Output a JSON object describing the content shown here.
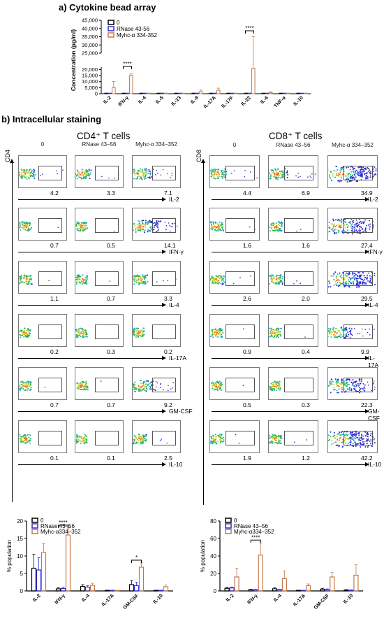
{
  "section_a": {
    "title": "a) Cytokine bead array"
  },
  "section_b": {
    "title": "b) Intracellular staining"
  },
  "cd4": {
    "title": "CD4⁺ T cells",
    "axis": "CD4"
  },
  "cd8": {
    "title": "CD8⁺ T cells",
    "axis": "CD8"
  },
  "conditions": [
    "0",
    "RNase 43–56",
    "Myhc-α 334–352"
  ],
  "cd4_cytokine_labels": [
    "IL-2",
    "IFN-γ",
    "IL-4",
    "IL-17A",
    "GM-CSF",
    "IL-10"
  ],
  "cd8_cytokine_labels": [
    "IL-2",
    "IFN-γ",
    "IL-4",
    "IL-17A",
    "GM-CSF",
    "IL-10"
  ],
  "cd4_percentages": [
    [
      "4.2",
      "3.3",
      "7.1"
    ],
    [
      "0.7",
      "0.5",
      "14.1"
    ],
    [
      "1.1",
      "0.7",
      "3.3"
    ],
    [
      "0.2",
      "0.3",
      "0.2"
    ],
    [
      "0.7",
      "0.7",
      "9.2"
    ],
    [
      "0.1",
      "0.1",
      "2.5"
    ]
  ],
  "cd8_percentages": [
    [
      "4.4",
      "6.9",
      "34.9"
    ],
    [
      "1.6",
      "1.6",
      "27.4"
    ],
    [
      "2.6",
      "2.0",
      "29.5"
    ],
    [
      "0.9",
      "0.4",
      "9.9"
    ],
    [
      "0.5",
      "0.3",
      "22.3"
    ],
    [
      "1.9",
      "1.2",
      "42.2"
    ]
  ],
  "colors": {
    "s0": "#000000",
    "s1": "#2b2bd6",
    "s2": "#c0794e",
    "sig": "#000000"
  },
  "chart_data": [
    {
      "type": "bar",
      "title": "a) Cytokine bead array",
      "ylabel": "Concentration (pg/ml)",
      "categories": [
        "IL-2",
        "IFN-γ",
        "IL-4",
        "IL-5",
        "IL-13",
        "IL-9",
        "IL-17A",
        "IL-17F",
        "IL-22",
        "IL-6",
        "TNF-α",
        "IL-10"
      ],
      "series": [
        {
          "name": "0",
          "values": [
            0,
            0,
            0,
            0,
            0,
            0,
            0,
            0,
            0,
            0,
            0,
            0
          ],
          "err": [
            0,
            0,
            0,
            0,
            0,
            0,
            0,
            0,
            0,
            0,
            0,
            0
          ]
        },
        {
          "name": "RNase 43-56",
          "values": [
            0,
            0,
            0,
            0,
            0,
            0,
            0,
            0,
            0,
            0,
            0,
            0
          ],
          "err": [
            0,
            0,
            0,
            0,
            0,
            0,
            0,
            0,
            0,
            0,
            0,
            0
          ]
        },
        {
          "name": "Myhc-α 334-352",
          "values": [
            5200,
            15200,
            0,
            0,
            0,
            1700,
            2800,
            0,
            21000,
            800,
            0,
            0
          ],
          "err": [
            5000,
            1200,
            0,
            0,
            0,
            1300,
            1800,
            0,
            14000,
            600,
            0,
            0
          ]
        }
      ],
      "y_ticks": [
        "0",
        "5,000",
        "10,000",
        "15,000",
        "20,000",
        "25,000",
        "30,000",
        "35,000",
        "40,000",
        "45,000"
      ],
      "ylim": [
        0,
        45000
      ],
      "axis_break": [
        22000,
        25000
      ],
      "significance": [
        {
          "category": "IFN-γ",
          "label": "****"
        },
        {
          "category": "IL-22",
          "label": "****"
        }
      ],
      "legend": "top-left"
    },
    {
      "type": "bar",
      "ylabel": "% population",
      "categories": [
        "IL-2",
        "IFN-γ",
        "IL-4",
        "IL-17A",
        "GM-CSF",
        "IL-10"
      ],
      "series": [
        {
          "name": "0",
          "values": [
            6.5,
            0.6,
            1.3,
            0.1,
            1.8,
            0.1
          ],
          "err": [
            4,
            0.3,
            0.5,
            0.1,
            1.2,
            0.1
          ]
        },
        {
          "name": "RNase 43–56",
          "values": [
            6,
            0.7,
            1.1,
            0.1,
            1.5,
            0.1
          ],
          "err": [
            3.5,
            0.3,
            0.4,
            0.1,
            1,
            0.1
          ]
        },
        {
          "name": "Myhc-α334–352",
          "values": [
            11,
            16,
            1.6,
            0.1,
            6.8,
            1.2
          ],
          "err": [
            2.5,
            2,
            0.6,
            0.1,
            1.2,
            0.5
          ]
        }
      ],
      "y_ticks": [
        "0",
        "5",
        "10",
        "15",
        "20"
      ],
      "ylim": [
        0,
        20
      ],
      "significance": [
        {
          "category": "IFN-γ",
          "label": "****"
        },
        {
          "category": "GM-CSF",
          "label": "*"
        }
      ],
      "legend": "top-left"
    },
    {
      "type": "bar",
      "ylabel": "% population",
      "categories": [
        "IL-2",
        "IFN-γ",
        "IL-4",
        "IL-17A",
        "GM-CSF",
        "IL-10"
      ],
      "series": [
        {
          "name": "0",
          "values": [
            3,
            1.5,
            2.5,
            0.5,
            2,
            1
          ],
          "err": [
            1,
            0.5,
            1,
            0.3,
            1,
            0.5
          ]
        },
        {
          "name": "RNase 43–56",
          "values": [
            3.5,
            1.2,
            1.5,
            0.3,
            1.5,
            0.8
          ],
          "err": [
            1,
            0.5,
            0.5,
            0.2,
            0.8,
            0.4
          ]
        },
        {
          "name": "Myhc-α334–352",
          "values": [
            16,
            41,
            14,
            6,
            16,
            18
          ],
          "err": [
            10,
            14,
            9,
            2,
            5,
            12
          ]
        }
      ],
      "y_ticks": [
        "0",
        "20",
        "40",
        "60",
        "80"
      ],
      "ylim": [
        0,
        80
      ],
      "significance": [
        {
          "category": "IFN-γ",
          "label": "****"
        }
      ],
      "legend": "top-left"
    }
  ]
}
